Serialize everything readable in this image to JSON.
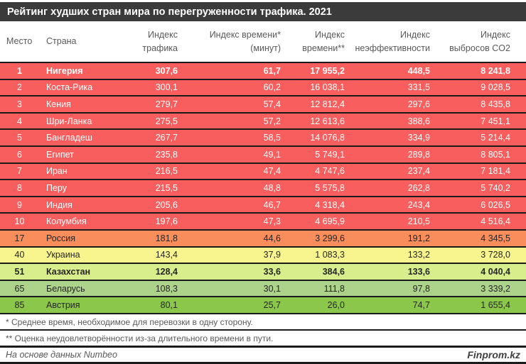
{
  "title": "Рейтинг худших стран мира по перегруженности трафика. 2021",
  "bands": {
    "red": {
      "bg": "#F95E5E",
      "fg": "#FFFFFF"
    },
    "orange": {
      "bg": "#F98D5C",
      "fg": "#262626"
    },
    "yellow": {
      "bg": "#F8F58E",
      "fg": "#262626"
    },
    "yellowgreen": {
      "bg": "#D8EE8C",
      "fg": "#262626"
    },
    "lightgreen": {
      "bg": "#ADD38A",
      "fg": "#262626"
    },
    "green": {
      "bg": "#8BC74B",
      "fg": "#262626"
    }
  },
  "accent_colors": {
    "titlebar_bg": "#3B3B3B",
    "titlebar_fg": "#FFFFFF",
    "header_fg": "#595959",
    "separator": "#1B1B1B"
  },
  "chart_data": {
    "type": "table",
    "title": "Рейтинг худших стран мира по перегруженности трафика. 2021",
    "columns": [
      {
        "id": "place",
        "label": "Место",
        "line1": "Место",
        "line2": ""
      },
      {
        "id": "country",
        "label": "Страна",
        "line1": "Страна",
        "line2": ""
      },
      {
        "id": "traffic",
        "label": "Индекс трафика",
        "line1": "Индекс",
        "line2": "трафика"
      },
      {
        "id": "time_minutes",
        "label": "Индекс времени* (минут)",
        "line1": "Индекс времени*",
        "line2": "(минут)"
      },
      {
        "id": "time_index",
        "label": "Индекс времени**",
        "line1": "Индекс",
        "line2": "времени**"
      },
      {
        "id": "inefficiency",
        "label": "Индекс неэффективности",
        "line1": "Индекс",
        "line2": "неэффективности"
      },
      {
        "id": "co2",
        "label": "Индекс выбросов CO2",
        "line1": "Индекс",
        "line2": "выбросов CO2"
      }
    ],
    "rows": [
      {
        "place": "1",
        "country": "Нигерия",
        "traffic": "307,6",
        "time_minutes": "61,7",
        "time_index": "17 955,2",
        "inefficiency": "448,5",
        "co2": "8 241,8",
        "band": "red",
        "bold": true
      },
      {
        "place": "2",
        "country": "Коста-Рика",
        "traffic": "300,1",
        "time_minutes": "60,2",
        "time_index": "16 038,1",
        "inefficiency": "331,5",
        "co2": "9 028,5",
        "band": "red",
        "bold": false
      },
      {
        "place": "3",
        "country": "Кения",
        "traffic": "279,7",
        "time_minutes": "57,4",
        "time_index": "12 812,4",
        "inefficiency": "297,6",
        "co2": "8 435,8",
        "band": "red",
        "bold": false
      },
      {
        "place": "4",
        "country": "Шри-Ланка",
        "traffic": "275,5",
        "time_minutes": "57,2",
        "time_index": "12 613,6",
        "inefficiency": "388,6",
        "co2": "7 451,1",
        "band": "red",
        "bold": false
      },
      {
        "place": "5",
        "country": "Бангладеш",
        "traffic": "267,7",
        "time_minutes": "58,5",
        "time_index": "14 076,8",
        "inefficiency": "334,9",
        "co2": "5 214,4",
        "band": "red",
        "bold": false
      },
      {
        "place": "6",
        "country": "Египет",
        "traffic": "235,8",
        "time_minutes": "49,1",
        "time_index": "5 749,1",
        "inefficiency": "289,8",
        "co2": "8 805,1",
        "band": "red",
        "bold": false
      },
      {
        "place": "7",
        "country": "Иран",
        "traffic": "216,5",
        "time_minutes": "47,4",
        "time_index": "4 747,6",
        "inefficiency": "237,4",
        "co2": "7 181,4",
        "band": "red",
        "bold": false
      },
      {
        "place": "8",
        "country": "Перу",
        "traffic": "215,5",
        "time_minutes": "48,8",
        "time_index": "5 575,8",
        "inefficiency": "262,8",
        "co2": "5 740,2",
        "band": "red",
        "bold": false
      },
      {
        "place": "9",
        "country": "Индия",
        "traffic": "205,6",
        "time_minutes": "46,7",
        "time_index": "4 318,4",
        "inefficiency": "243,4",
        "co2": "6 026,5",
        "band": "red",
        "bold": false
      },
      {
        "place": "10",
        "country": "Колумбия",
        "traffic": "197,6",
        "time_minutes": "47,3",
        "time_index": "4 695,9",
        "inefficiency": "210,5",
        "co2": "4 516,4",
        "band": "red",
        "bold": false
      },
      {
        "place": "17",
        "country": "Россия",
        "traffic": "181,8",
        "time_minutes": "44,6",
        "time_index": "3 299,6",
        "inefficiency": "191,2",
        "co2": "4 345,5",
        "band": "orange",
        "bold": false
      },
      {
        "place": "40",
        "country": "Украина",
        "traffic": "143,4",
        "time_minutes": "37,9",
        "time_index": "1 083,3",
        "inefficiency": "133,2",
        "co2": "3 728,0",
        "band": "yellow",
        "bold": false
      },
      {
        "place": "51",
        "country": "Казахстан",
        "traffic": "128,4",
        "time_minutes": "33,6",
        "time_index": "384,6",
        "inefficiency": "133,6",
        "co2": "4 040,4",
        "band": "yellowgreen",
        "bold": true
      },
      {
        "place": "65",
        "country": "Беларусь",
        "traffic": "108,3",
        "time_minutes": "30,1",
        "time_index": "111,8",
        "inefficiency": "97,8",
        "co2": "3 339,2",
        "band": "lightgreen",
        "bold": false
      },
      {
        "place": "85",
        "country": "Австрия",
        "traffic": "80,1",
        "time_minutes": "25,7",
        "time_index": "26,0",
        "inefficiency": "74,7",
        "co2": "1 655,4",
        "band": "green",
        "bold": false
      }
    ]
  },
  "footnotes": [
    "* Среднее время, необходимое для перевозки в одну сторону.",
    "** Оценка неудовлетворённости из-за длительного времени в пути."
  ],
  "source": "На основе данных Numbeo",
  "brand": "Finprom.kz"
}
